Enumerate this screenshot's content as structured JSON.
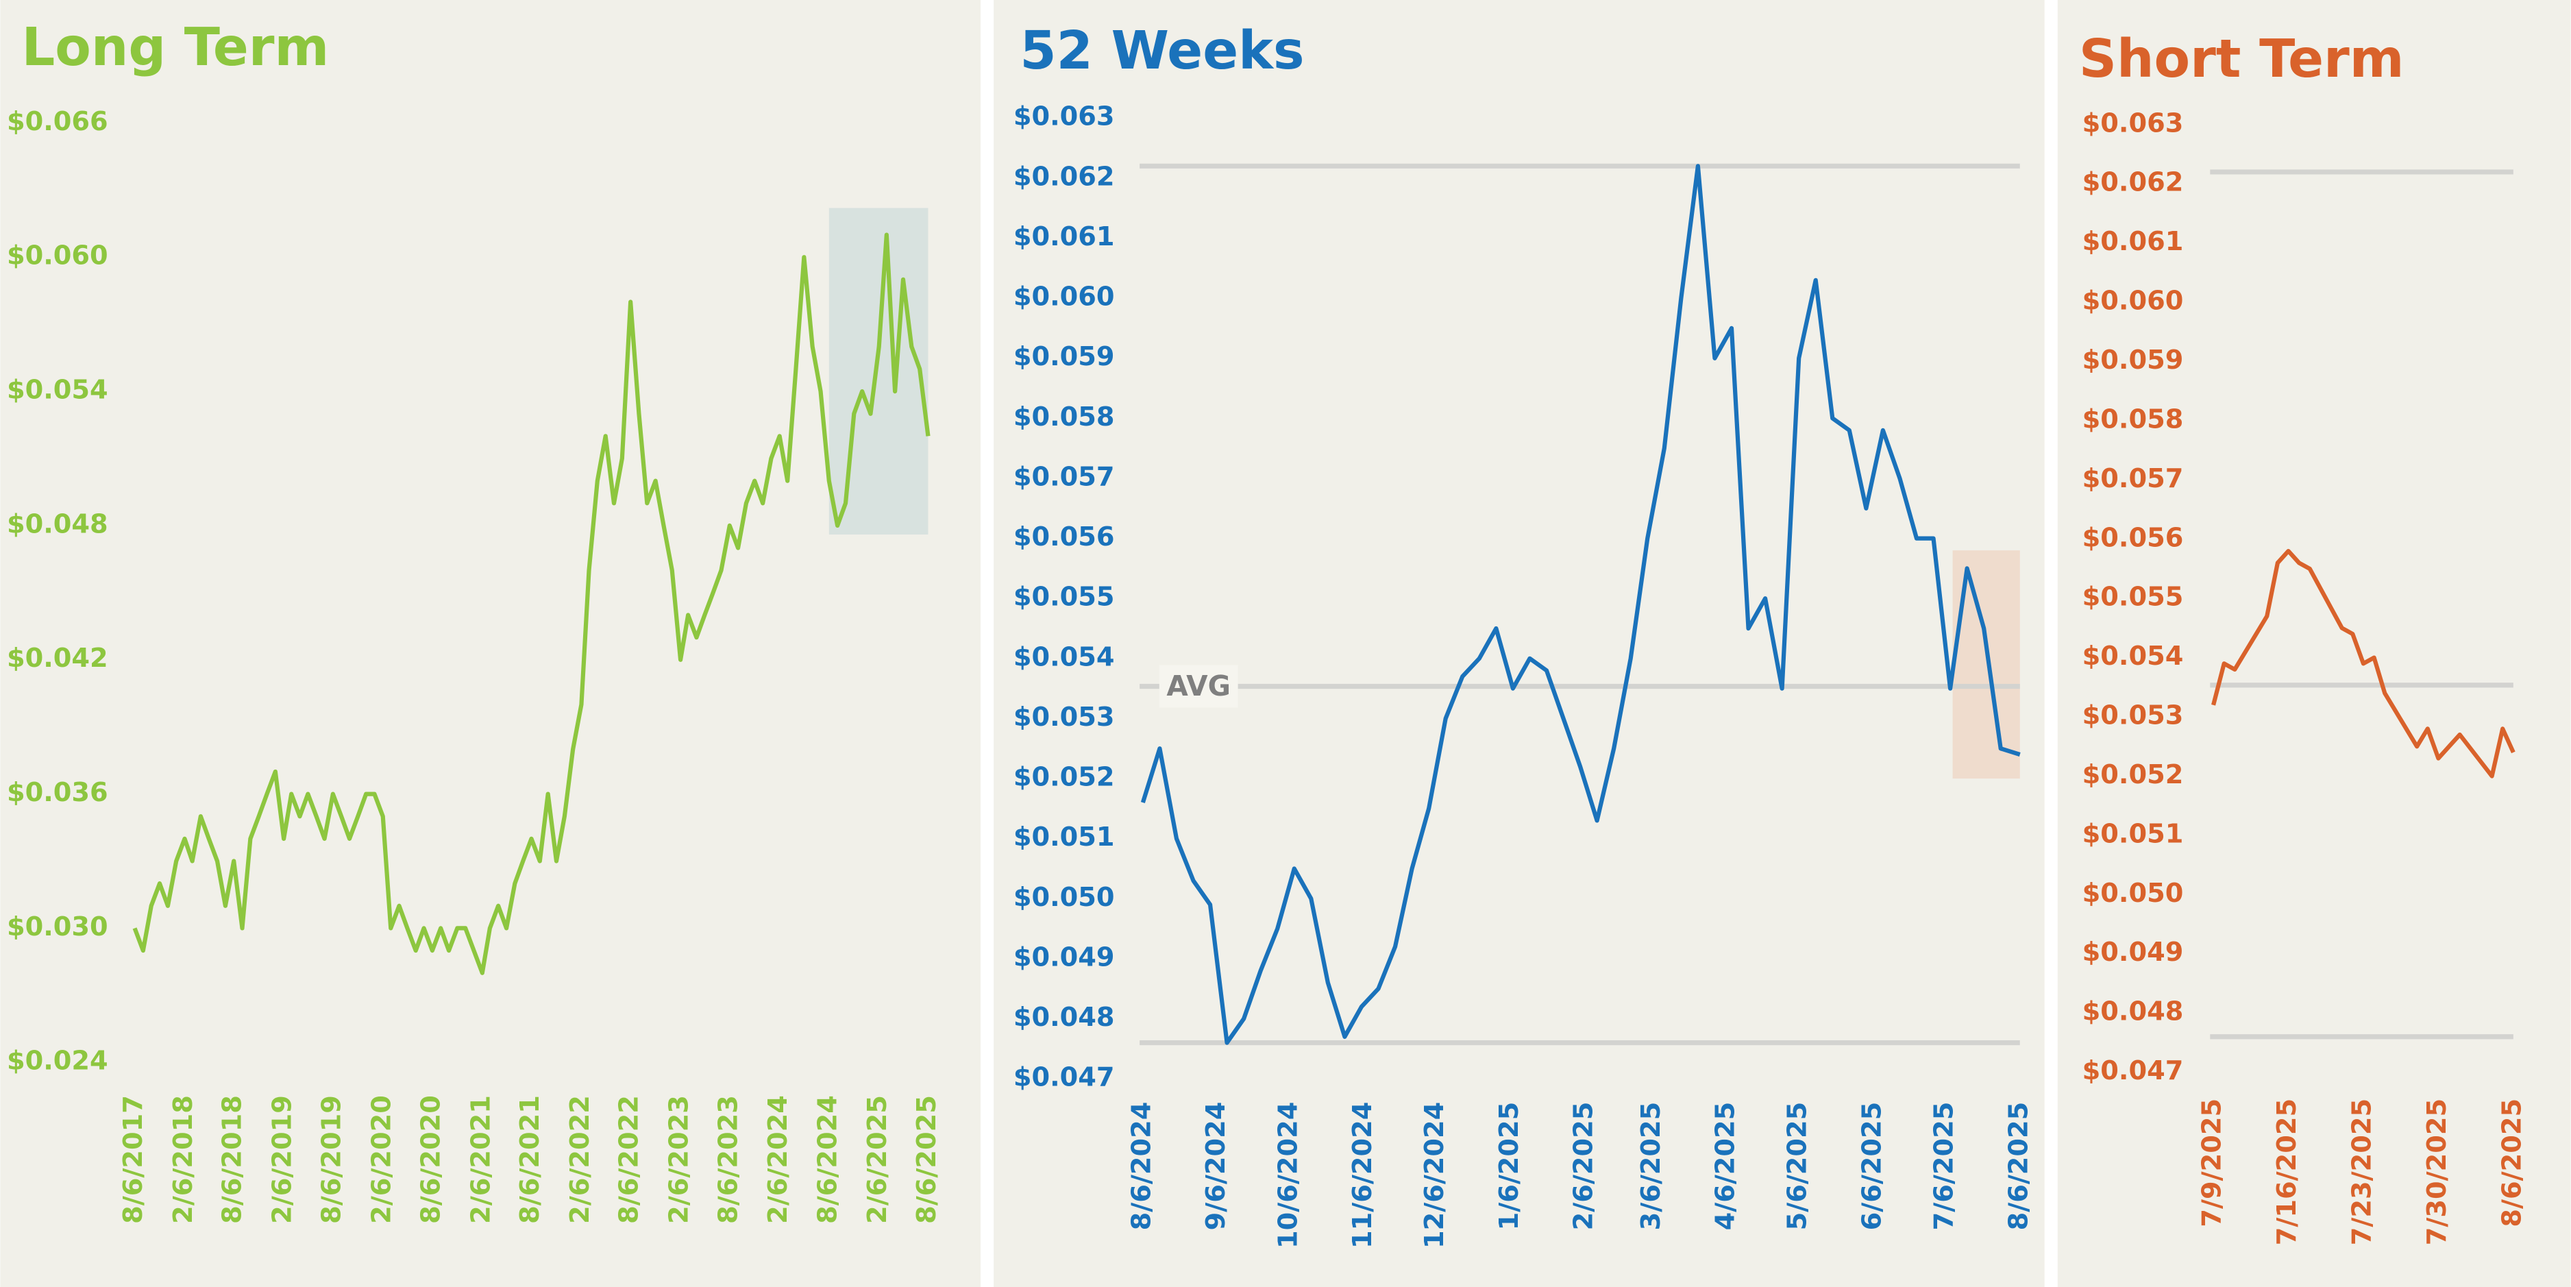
{
  "chart_data": [
    {
      "type": "line",
      "title": "Long Term",
      "color": "#8dc63f",
      "x": [
        "8/6/2017",
        "9/6/2017",
        "10/6/2017",
        "11/6/2017",
        "12/6/2017",
        "1/6/2018",
        "2/6/2018",
        "3/6/2018",
        "4/6/2018",
        "5/6/2018",
        "6/6/2018",
        "7/6/2018",
        "8/6/2018",
        "9/6/2018",
        "10/6/2018",
        "11/6/2018",
        "12/6/2018",
        "1/6/2019",
        "2/6/2019",
        "3/6/2019",
        "4/6/2019",
        "5/6/2019",
        "6/6/2019",
        "7/6/2019",
        "8/6/2019",
        "9/6/2019",
        "10/6/2019",
        "11/6/2019",
        "12/6/2019",
        "1/6/2020",
        "2/6/2020",
        "3/6/2020",
        "4/6/2020",
        "5/6/2020",
        "6/6/2020",
        "7/6/2020",
        "8/6/2020",
        "9/6/2020",
        "10/6/2020",
        "11/6/2020",
        "12/6/2020",
        "1/6/2021",
        "2/6/2021",
        "3/6/2021",
        "4/6/2021",
        "5/6/2021",
        "6/6/2021",
        "7/6/2021",
        "8/6/2021",
        "9/6/2021",
        "10/6/2021",
        "11/6/2021",
        "12/6/2021",
        "1/6/2022",
        "2/6/2022",
        "3/6/2022",
        "4/6/2022",
        "5/6/2022",
        "6/6/2022",
        "7/6/2022",
        "8/6/2022",
        "9/6/2022",
        "10/6/2022",
        "11/6/2022",
        "12/6/2022",
        "1/6/2023",
        "2/6/2023",
        "3/6/2023",
        "4/6/2023",
        "5/6/2023",
        "6/6/2023",
        "7/6/2023",
        "8/6/2023",
        "9/6/2023",
        "10/6/2023",
        "11/6/2023",
        "12/6/2023",
        "1/6/2024",
        "2/6/2024",
        "3/6/2024",
        "4/6/2024",
        "5/6/2024",
        "6/6/2024",
        "7/6/2024",
        "8/6/2024",
        "9/6/2024",
        "10/6/2024",
        "11/6/2024",
        "12/6/2024",
        "1/6/2025",
        "2/6/2025",
        "3/6/2025",
        "4/6/2025",
        "5/6/2025",
        "6/6/2025",
        "7/6/2025",
        "8/6/2025"
      ],
      "values": [
        0.03,
        0.029,
        0.031,
        0.032,
        0.031,
        0.033,
        0.034,
        0.033,
        0.035,
        0.034,
        0.033,
        0.031,
        0.033,
        0.03,
        0.034,
        0.035,
        0.036,
        0.037,
        0.034,
        0.036,
        0.035,
        0.036,
        0.035,
        0.034,
        0.036,
        0.035,
        0.034,
        0.035,
        0.036,
        0.036,
        0.035,
        0.03,
        0.031,
        0.03,
        0.029,
        0.03,
        0.029,
        0.03,
        0.029,
        0.03,
        0.03,
        0.029,
        0.028,
        0.03,
        0.031,
        0.03,
        0.032,
        0.033,
        0.034,
        0.033,
        0.036,
        0.033,
        0.035,
        0.038,
        0.04,
        0.046,
        0.05,
        0.052,
        0.049,
        0.051,
        0.058,
        0.053,
        0.049,
        0.05,
        0.048,
        0.046,
        0.042,
        0.044,
        0.043,
        0.044,
        0.045,
        0.046,
        0.048,
        0.047,
        0.049,
        0.05,
        0.049,
        0.051,
        0.052,
        0.05,
        0.055,
        0.06,
        0.056,
        0.054,
        0.05,
        0.048,
        0.049,
        0.053,
        0.054,
        0.053,
        0.056,
        0.061,
        0.054,
        0.059,
        0.056,
        0.055,
        0.052
      ],
      "xlim": [
        "8/6/2017",
        "8/6/2025"
      ],
      "xticks": [
        "8/6/2017",
        "2/6/2018",
        "8/6/2018",
        "2/6/2019",
        "8/6/2019",
        "2/6/2020",
        "8/6/2020",
        "2/6/2021",
        "8/6/2021",
        "2/6/2022",
        "8/6/2022",
        "2/6/2023",
        "8/6/2023",
        "2/6/2024",
        "8/6/2024",
        "2/6/2025",
        "8/6/2025"
      ],
      "ylim": [
        0.024,
        0.066
      ],
      "yticks": [
        {
          "value": 0.024,
          "label": "$0.024"
        },
        {
          "value": 0.03,
          "label": "$0.030"
        },
        {
          "value": 0.036,
          "label": "$0.036"
        },
        {
          "value": 0.042,
          "label": "$0.042"
        },
        {
          "value": 0.048,
          "label": "$0.048"
        },
        {
          "value": 0.054,
          "label": "$0.054"
        },
        {
          "value": 0.06,
          "label": "$0.060"
        },
        {
          "value": 0.066,
          "label": "$0.066"
        }
      ]
    },
    {
      "type": "line",
      "title": "52 Weeks",
      "color": "#1a72bb",
      "annotation": "AVG",
      "x": [
        "8/6/2024",
        "8/13/2024",
        "8/20/2024",
        "8/27/2024",
        "9/3/2024",
        "9/10/2024",
        "9/17/2024",
        "9/24/2024",
        "10/1/2024",
        "10/8/2024",
        "10/15/2024",
        "10/22/2024",
        "10/29/2024",
        "11/5/2024",
        "11/12/2024",
        "11/19/2024",
        "11/26/2024",
        "12/3/2024",
        "12/10/2024",
        "12/17/2024",
        "12/24/2024",
        "12/31/2024",
        "1/7/2025",
        "1/14/2025",
        "1/21/2025",
        "1/28/2025",
        "2/4/2025",
        "2/11/2025",
        "2/18/2025",
        "2/25/2025",
        "3/4/2025",
        "3/11/2025",
        "3/18/2025",
        "3/25/2025",
        "4/1/2025",
        "4/8/2025",
        "4/15/2025",
        "4/22/2025",
        "4/29/2025",
        "5/6/2025",
        "5/13/2025",
        "5/20/2025",
        "5/27/2025",
        "6/3/2025",
        "6/10/2025",
        "6/17/2025",
        "6/24/2025",
        "7/1/2025",
        "7/8/2025",
        "7/15/2025",
        "7/22/2025",
        "7/29/2025",
        "8/6/2025"
      ],
      "values": [
        0.0516,
        0.0525,
        0.051,
        0.0503,
        0.0499,
        0.0476,
        0.048,
        0.0488,
        0.0495,
        0.0505,
        0.05,
        0.0486,
        0.0477,
        0.0482,
        0.0485,
        0.0492,
        0.0505,
        0.0515,
        0.053,
        0.0537,
        0.054,
        0.0545,
        0.0535,
        0.054,
        0.0538,
        0.053,
        0.0522,
        0.0513,
        0.0525,
        0.054,
        0.056,
        0.0575,
        0.06,
        0.0622,
        0.059,
        0.0595,
        0.0545,
        0.055,
        0.0535,
        0.059,
        0.0603,
        0.058,
        0.0578,
        0.0565,
        0.0578,
        0.057,
        0.056,
        0.056,
        0.0535,
        0.0555,
        0.0545,
        0.0525,
        0.0524
      ],
      "xlim": [
        "8/6/2024",
        "8/6/2025"
      ],
      "xticks": [
        "8/6/2024",
        "9/6/2024",
        "10/6/2024",
        "11/6/2024",
        "12/6/2024",
        "1/6/2025",
        "2/6/2025",
        "3/6/2025",
        "4/6/2025",
        "5/6/2025",
        "6/6/2025",
        "7/6/2025",
        "8/6/2025"
      ],
      "ylim": [
        0.047,
        0.063
      ],
      "yticks": [
        {
          "value": 0.047,
          "label": "$0.047"
        },
        {
          "value": 0.048,
          "label": "$0.048"
        },
        {
          "value": 0.049,
          "label": "$0.049"
        },
        {
          "value": 0.05,
          "label": "$0.050"
        },
        {
          "value": 0.051,
          "label": "$0.051"
        },
        {
          "value": 0.052,
          "label": "$0.052"
        },
        {
          "value": 0.053,
          "label": "$0.053"
        },
        {
          "value": 0.054,
          "label": "$0.054"
        },
        {
          "value": 0.055,
          "label": "$0.055"
        },
        {
          "value": 0.056,
          "label": "$0.056"
        },
        {
          "value": 0.057,
          "label": "$0.057"
        },
        {
          "value": 0.058,
          "label": "$0.058"
        },
        {
          "value": 0.059,
          "label": "$0.059"
        },
        {
          "value": 0.06,
          "label": "$0.060"
        },
        {
          "value": 0.061,
          "label": "$0.061"
        },
        {
          "value": 0.062,
          "label": "$0.062"
        },
        {
          "value": 0.063,
          "label": "$0.063"
        }
      ]
    },
    {
      "type": "line",
      "title": "Short Term",
      "color": "#d9622b",
      "x": [
        "7/9/2025",
        "7/10/2025",
        "7/11/2025",
        "7/14/2025",
        "7/15/2025",
        "7/16/2025",
        "7/17/2025",
        "7/18/2025",
        "7/21/2025",
        "7/22/2025",
        "7/23/2025",
        "7/24/2025",
        "7/25/2025",
        "7/28/2025",
        "7/29/2025",
        "7/30/2025",
        "7/31/2025",
        "8/1/2025",
        "8/4/2025",
        "8/5/2025",
        "8/6/2025"
      ],
      "values": [
        0.0532,
        0.0539,
        0.0538,
        0.0547,
        0.0556,
        0.0558,
        0.0556,
        0.0555,
        0.0545,
        0.0544,
        0.0539,
        0.054,
        0.0534,
        0.0525,
        0.0528,
        0.0523,
        0.0525,
        0.0527,
        0.052,
        0.0528,
        0.0524
      ],
      "xlim": [
        "7/9/2025",
        "8/6/2025"
      ],
      "xticks": [
        "7/9/2025",
        "7/16/2025",
        "7/23/2025",
        "7/30/2025",
        "8/6/2025"
      ],
      "ylim": [
        0.047,
        0.063
      ],
      "yticks": [
        {
          "value": 0.047,
          "label": "$0.047"
        },
        {
          "value": 0.048,
          "label": "$0.048"
        },
        {
          "value": 0.049,
          "label": "$0.049"
        },
        {
          "value": 0.05,
          "label": "$0.050"
        },
        {
          "value": 0.051,
          "label": "$0.051"
        },
        {
          "value": 0.052,
          "label": "$0.052"
        },
        {
          "value": 0.053,
          "label": "$0.053"
        },
        {
          "value": 0.054,
          "label": "$0.054"
        },
        {
          "value": 0.055,
          "label": "$0.055"
        },
        {
          "value": 0.056,
          "label": "$0.056"
        },
        {
          "value": 0.057,
          "label": "$0.057"
        },
        {
          "value": 0.058,
          "label": "$0.058"
        },
        {
          "value": 0.059,
          "label": "$0.059"
        },
        {
          "value": 0.06,
          "label": "$0.060"
        },
        {
          "value": 0.061,
          "label": "$0.061"
        },
        {
          "value": 0.062,
          "label": "$0.062"
        },
        {
          "value": 0.063,
          "label": "$0.063"
        }
      ]
    }
  ]
}
